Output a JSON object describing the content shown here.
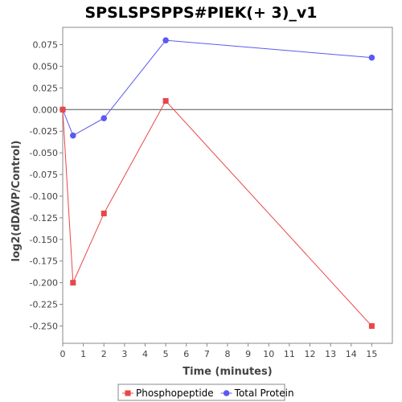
{
  "chart_data": {
    "type": "line",
    "title": "SPSLSPSPPS#PIEK(+ 3)_v1",
    "xlabel": "Time (minutes)",
    "ylabel": "log2(dDAVP/Control)",
    "xlim": [
      0,
      16
    ],
    "ylim": [
      -0.27,
      0.095
    ],
    "xticks": [
      0,
      1,
      2,
      3,
      4,
      5,
      6,
      7,
      8,
      9,
      10,
      11,
      12,
      13,
      14,
      15
    ],
    "yticks": [
      0.075,
      0.05,
      0.025,
      0.0,
      -0.025,
      -0.05,
      -0.075,
      -0.1,
      -0.125,
      -0.15,
      -0.175,
      -0.2,
      -0.225,
      -0.25
    ],
    "ytick_labels": [
      "0.075",
      "0.050",
      "0.025",
      "0.000",
      "-0.025",
      "-0.050",
      "-0.075",
      "-0.100",
      "-0.125",
      "-0.150",
      "-0.175",
      "-0.200",
      "-0.225",
      "-0.250"
    ],
    "grid": false,
    "zero_line": true,
    "legend_position": "bottom",
    "series": [
      {
        "name": "Phosphopeptide",
        "color": "#e8474a",
        "marker": "square",
        "x": [
          0,
          0.5,
          2,
          5,
          15
        ],
        "y": [
          0.0,
          -0.2,
          -0.12,
          0.01,
          -0.25
        ]
      },
      {
        "name": "Total Protein",
        "color": "#5a5af0",
        "marker": "circle",
        "x": [
          0,
          0.5,
          2,
          5,
          15
        ],
        "y": [
          0.0,
          -0.03,
          -0.01,
          0.08,
          0.06
        ]
      }
    ]
  }
}
